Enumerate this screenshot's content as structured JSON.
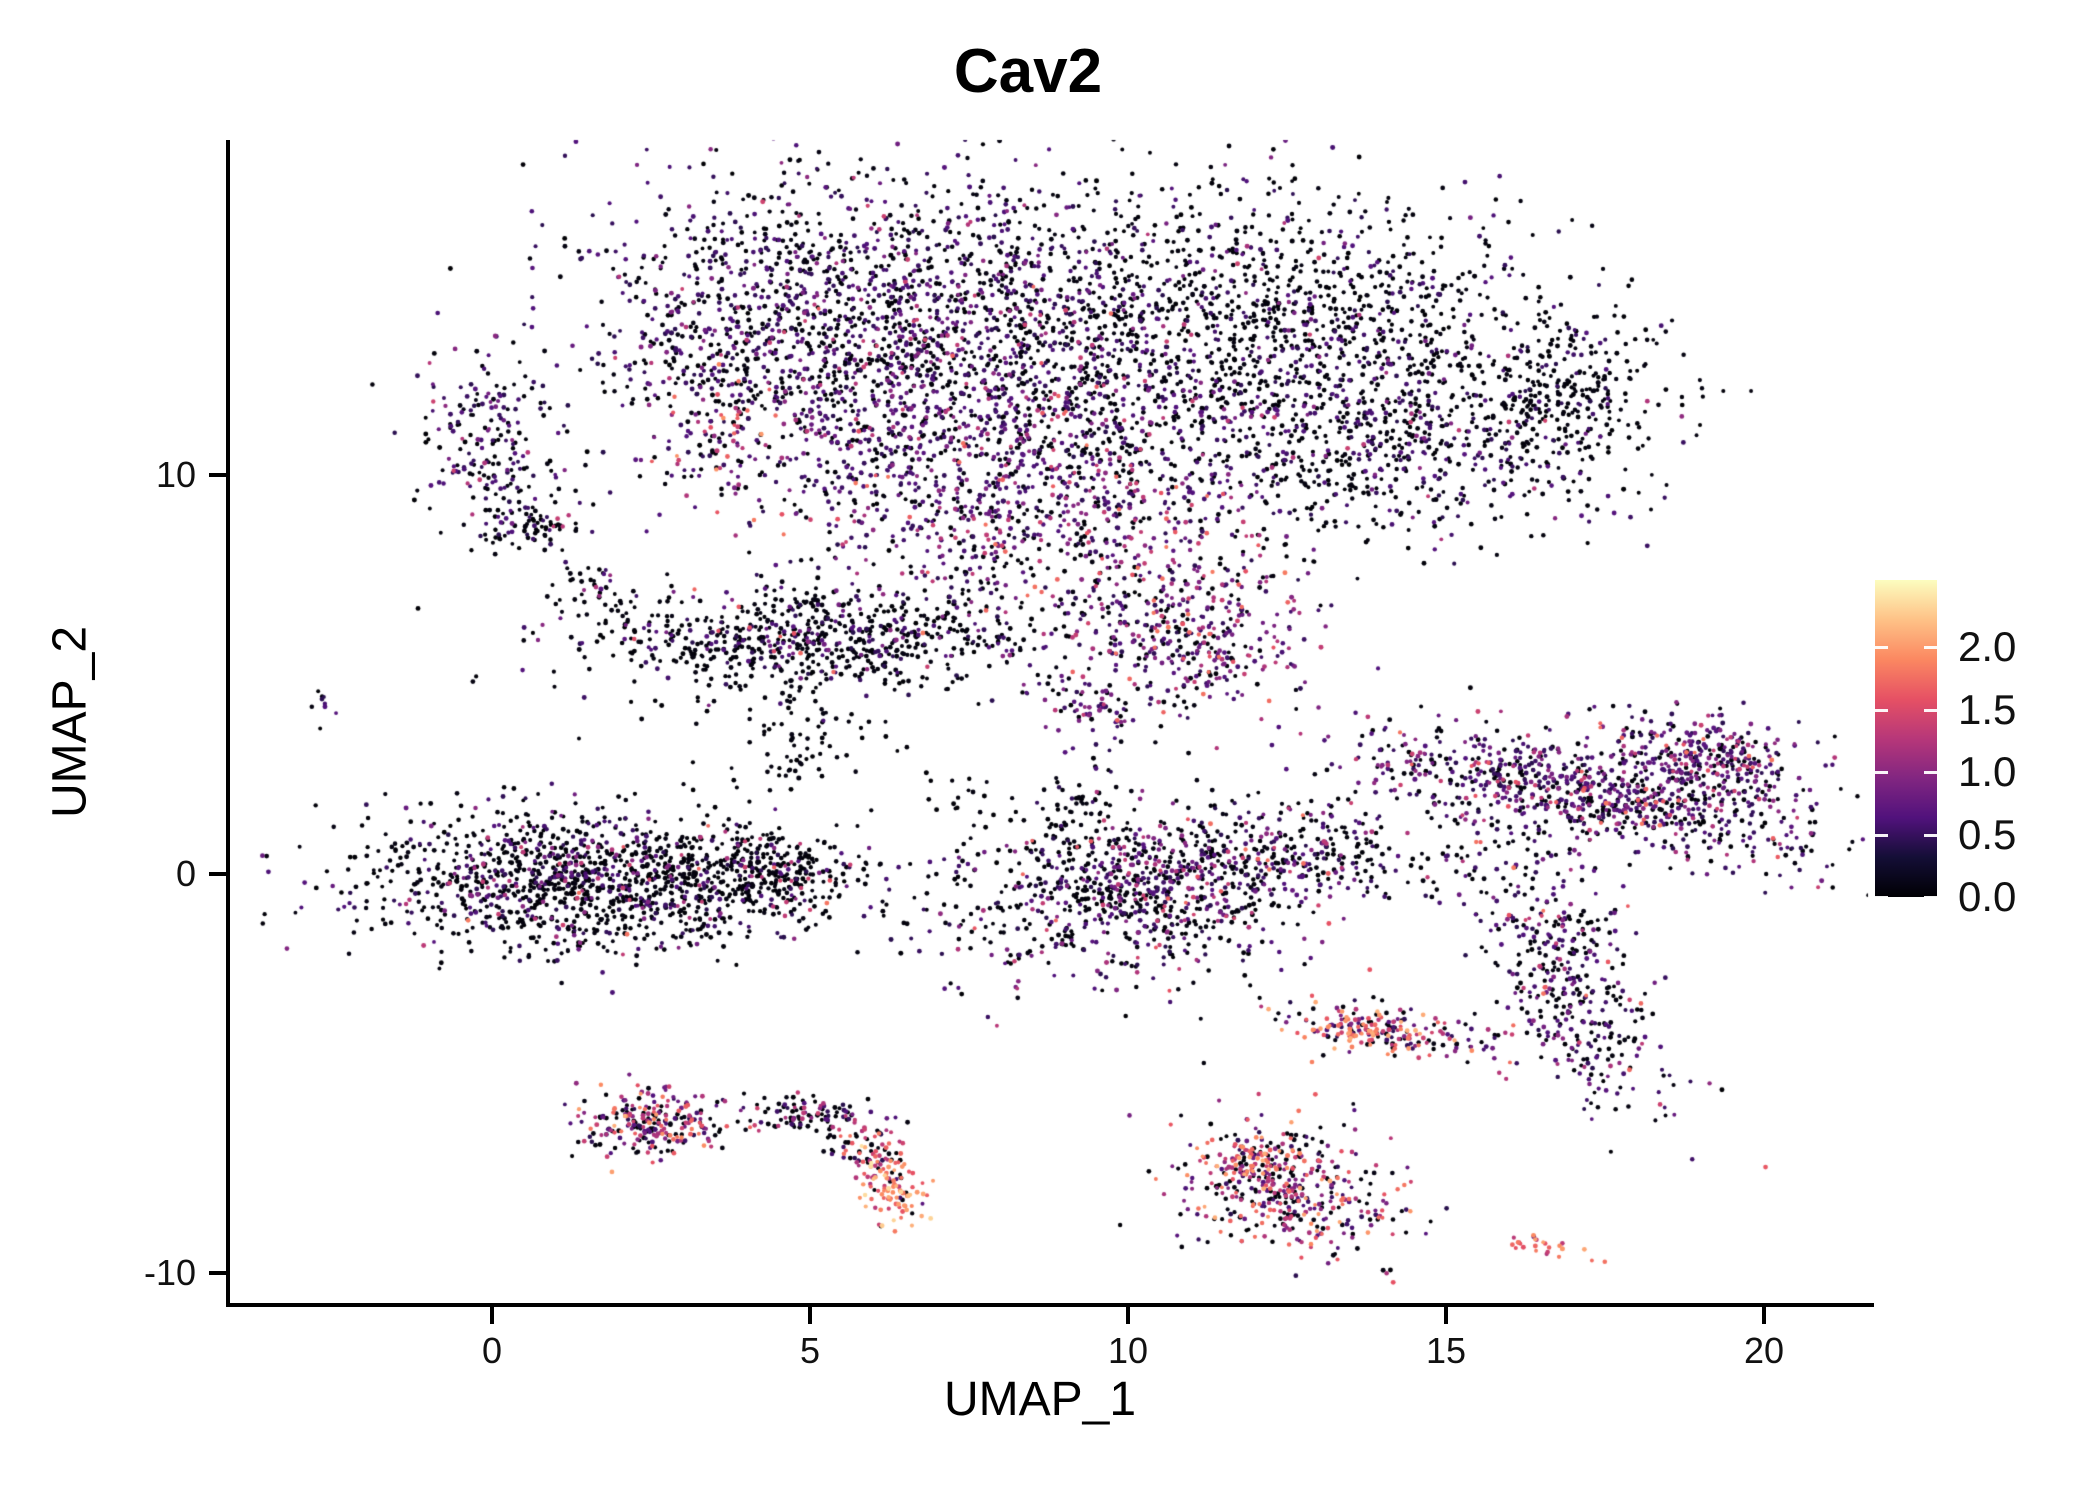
{
  "figure": {
    "title": "Cav2"
  },
  "chart_data": {
    "type": "scatter",
    "title": "Cav2",
    "xlabel": "UMAP_1",
    "ylabel": "UMAP_2",
    "grid": false,
    "axes": {
      "x": {
        "range": [
          -4.2,
          21.9
        ],
        "ticks": [
          0,
          5,
          10,
          15,
          20
        ],
        "tick_labels": [
          "0",
          "5",
          "10",
          "15",
          "20"
        ]
      },
      "y": {
        "range": [
          -10.8,
          18.4
        ],
        "ticks": [
          10,
          0,
          -10
        ],
        "tick_labels": [
          "10",
          "0",
          "-10"
        ]
      }
    },
    "legend": {
      "position": "right",
      "vmin": 0.0,
      "vmax": 2.54,
      "ticks": [
        2.0,
        1.5,
        1.0,
        0.5,
        0.0
      ],
      "tick_labels": [
        "2.0",
        "1.5",
        "1.0",
        "0.5",
        "0.0"
      ]
    },
    "colormap": {
      "name": "magma",
      "stops": [
        [
          0.0,
          "#000004"
        ],
        [
          0.125,
          "#140e36"
        ],
        [
          0.25,
          "#51127c"
        ],
        [
          0.375,
          "#822681"
        ],
        [
          0.5,
          "#b73779"
        ],
        [
          0.625,
          "#e65164"
        ],
        [
          0.75,
          "#fb8861"
        ],
        [
          0.875,
          "#fec287"
        ],
        [
          1.0,
          "#fcfdbf"
        ]
      ]
    },
    "point_radius_px": [
      1.9,
      2.5
    ],
    "clusters_note": "UMAP cell clusters; each entry: [cx, cy, sx, sy, angle_deg, n_points, expression_mix[[value,weight]...]] in data coordinates; expression = Cav2 level (0 to ~2.5)",
    "clusters": [
      [
        -0.15,
        10.8,
        0.55,
        1.05,
        0,
        190,
        [
          [
            0,
            50
          ],
          [
            0.55,
            32
          ],
          [
            0.9,
            13
          ],
          [
            1.3,
            5
          ]
        ]
      ],
      [
        0.65,
        8.75,
        0.5,
        0.4,
        0,
        90,
        [
          [
            0,
            68
          ],
          [
            0.55,
            27
          ],
          [
            1.3,
            5
          ]
        ]
      ],
      [
        1.6,
        7.2,
        0.35,
        0.3,
        0,
        30,
        [
          [
            0,
            75
          ],
          [
            0.55,
            15
          ],
          [
            1.1,
            10
          ]
        ]
      ],
      [
        2.6,
        6.9,
        0.7,
        0.12,
        0,
        12,
        [
          [
            0,
            90
          ],
          [
            0.55,
            10
          ]
        ]
      ],
      [
        4.3,
        13.8,
        1.5,
        1.9,
        0,
        850,
        [
          [
            0,
            52
          ],
          [
            0.55,
            35
          ],
          [
            0.9,
            10
          ],
          [
            1.3,
            3
          ]
        ]
      ],
      [
        7.2,
        13.2,
        1.7,
        2.4,
        0,
        1150,
        [
          [
            0,
            50
          ],
          [
            0.55,
            36
          ],
          [
            0.9,
            10
          ],
          [
            1.3,
            4
          ]
        ]
      ],
      [
        8.1,
        10.2,
        1.9,
        2.1,
        0,
        1000,
        [
          [
            0,
            30
          ],
          [
            0.55,
            40
          ],
          [
            0.9,
            17
          ],
          [
            1.3,
            9
          ],
          [
            1.7,
            4
          ]
        ]
      ],
      [
        10.6,
        7.2,
        1.1,
        1.4,
        0,
        320,
        [
          [
            0,
            32
          ],
          [
            0.55,
            30
          ],
          [
            0.9,
            18
          ],
          [
            1.3,
            12
          ],
          [
            1.7,
            8
          ]
        ]
      ],
      [
        11.2,
        5.7,
        0.85,
        0.8,
        0,
        180,
        [
          [
            0,
            28
          ],
          [
            0.55,
            32
          ],
          [
            0.9,
            20
          ],
          [
            1.3,
            12
          ],
          [
            1.7,
            8
          ]
        ]
      ],
      [
        9.6,
        4.0,
        0.45,
        0.35,
        0,
        60,
        [
          [
            0,
            25
          ],
          [
            0.55,
            50
          ],
          [
            0.9,
            20
          ],
          [
            1.3,
            5
          ]
        ]
      ],
      [
        3.6,
        11.2,
        0.45,
        0.8,
        0,
        70,
        [
          [
            0,
            30
          ],
          [
            0.55,
            25
          ],
          [
            1.3,
            20
          ],
          [
            1.7,
            18
          ],
          [
            2.0,
            7
          ]
        ]
      ],
      [
        12.8,
        13.6,
        2.0,
        1.8,
        0,
        1050,
        [
          [
            0,
            72
          ],
          [
            0.55,
            22
          ],
          [
            0.9,
            5
          ],
          [
            1.3,
            1
          ]
        ]
      ],
      [
        14.1,
        10.6,
        1.8,
        1.1,
        0,
        550,
        [
          [
            0,
            66
          ],
          [
            0.55,
            26
          ],
          [
            0.9,
            6
          ],
          [
            1.3,
            2
          ]
        ]
      ],
      [
        16.9,
        12.0,
        0.75,
        0.9,
        0,
        260,
        [
          [
            0,
            90
          ],
          [
            0.55,
            9
          ],
          [
            1.3,
            1
          ]
        ]
      ],
      [
        10.0,
        13.7,
        1.4,
        2.1,
        0,
        320,
        [
          [
            0,
            80
          ],
          [
            0.55,
            17
          ],
          [
            0.9,
            3
          ]
        ]
      ],
      [
        -2.62,
        4.42,
        0.1,
        0.28,
        0,
        9,
        [
          [
            0,
            75
          ],
          [
            0.55,
            25
          ]
        ]
      ],
      [
        5.2,
        5.9,
        1.85,
        0.6,
        0,
        720,
        [
          [
            0,
            78
          ],
          [
            0.55,
            17
          ],
          [
            0.9,
            4
          ],
          [
            1.6,
            1
          ]
        ]
      ],
      [
        4.75,
        3.3,
        0.5,
        0.75,
        0,
        70,
        [
          [
            0,
            92
          ],
          [
            0.55,
            8
          ]
        ]
      ],
      [
        3.4,
        5.0,
        0.5,
        0.5,
        0,
        15,
        [
          [
            0,
            100
          ]
        ]
      ],
      [
        1.6,
        -0.15,
        1.8,
        0.85,
        0,
        1350,
        [
          [
            0,
            72
          ],
          [
            0.55,
            17
          ],
          [
            0.9,
            6
          ],
          [
            1.3,
            4
          ],
          [
            1.7,
            1
          ]
        ]
      ],
      [
        4.4,
        0.1,
        0.6,
        0.45,
        0,
        200,
        [
          [
            0,
            85
          ],
          [
            0.55,
            12
          ],
          [
            1.3,
            3
          ]
        ]
      ],
      [
        7.4,
        1.9,
        0.5,
        0.4,
        0,
        18,
        [
          [
            0,
            100
          ]
        ]
      ],
      [
        9.9,
        -0.6,
        1.4,
        1.0,
        0,
        780,
        [
          [
            0,
            52
          ],
          [
            0.55,
            26
          ],
          [
            0.9,
            12
          ],
          [
            1.3,
            7
          ],
          [
            1.7,
            3
          ]
        ]
      ],
      [
        9.2,
        1.7,
        0.35,
        0.7,
        0,
        55,
        [
          [
            0,
            75
          ],
          [
            0.55,
            20
          ],
          [
            1.3,
            5
          ]
        ]
      ],
      [
        12.6,
        0.5,
        1.4,
        0.65,
        0,
        380,
        [
          [
            0,
            60
          ],
          [
            0.55,
            25
          ],
          [
            0.9,
            9
          ],
          [
            1.3,
            4
          ],
          [
            1.7,
            2
          ]
        ]
      ],
      [
        17.2,
        2.0,
        2.0,
        0.6,
        -18,
        850,
        [
          [
            0,
            35
          ],
          [
            0.55,
            38
          ],
          [
            0.9,
            15
          ],
          [
            1.3,
            8
          ],
          [
            1.7,
            4
          ]
        ]
      ],
      [
        19.1,
        2.9,
        0.8,
        0.55,
        -18,
        320,
        [
          [
            0,
            30
          ],
          [
            0.55,
            38
          ],
          [
            0.9,
            18
          ],
          [
            1.3,
            10
          ],
          [
            1.7,
            4
          ]
        ]
      ],
      [
        16.9,
        -2.6,
        0.55,
        1.8,
        15,
        420,
        [
          [
            0,
            45
          ],
          [
            0.55,
            33
          ],
          [
            0.9,
            13
          ],
          [
            1.3,
            6
          ],
          [
            1.7,
            3
          ]
        ]
      ],
      [
        14.25,
        -3.95,
        0.95,
        0.3,
        -12,
        170,
        [
          [
            0,
            30
          ],
          [
            0.55,
            22
          ],
          [
            0.9,
            14
          ],
          [
            1.3,
            14
          ],
          [
            1.7,
            12
          ],
          [
            2.0,
            8
          ]
        ]
      ],
      [
        13.55,
        -3.9,
        0.3,
        0.22,
        0,
        60,
        [
          [
            1.7,
            35
          ],
          [
            2.0,
            30
          ],
          [
            1.3,
            15
          ],
          [
            0,
            10
          ],
          [
            0.55,
            10
          ]
        ]
      ],
      [
        12.55,
        -7.9,
        0.95,
        0.75,
        -30,
        420,
        [
          [
            0,
            34
          ],
          [
            0.55,
            16
          ],
          [
            0.9,
            14
          ],
          [
            1.3,
            16
          ],
          [
            1.7,
            13
          ],
          [
            2.0,
            7
          ]
        ]
      ],
      [
        11.9,
        -7.3,
        0.35,
        0.3,
        0,
        80,
        [
          [
            1.7,
            30
          ],
          [
            2.0,
            25
          ],
          [
            1.3,
            20
          ],
          [
            0.9,
            10
          ],
          [
            0,
            15
          ]
        ]
      ],
      [
        16.45,
        -9.3,
        0.35,
        0.12,
        -20,
        26,
        [
          [
            1.7,
            30
          ],
          [
            2.0,
            25
          ],
          [
            2.3,
            10
          ],
          [
            1.3,
            15
          ],
          [
            0,
            12
          ],
          [
            0.55,
            8
          ]
        ]
      ],
      [
        2.45,
        -6.25,
        0.55,
        0.42,
        0,
        240,
        [
          [
            0,
            30
          ],
          [
            0.55,
            20
          ],
          [
            0.9,
            16
          ],
          [
            1.3,
            18
          ],
          [
            1.7,
            12
          ],
          [
            2.0,
            4
          ]
        ]
      ],
      [
        4.0,
        -6.3,
        0.85,
        0.12,
        0,
        26,
        [
          [
            0,
            50
          ],
          [
            0.55,
            20
          ],
          [
            0.9,
            10
          ],
          [
            1.3,
            15
          ],
          [
            1.7,
            5
          ]
        ]
      ],
      [
        5.0,
        -6.0,
        0.55,
        0.22,
        -10,
        80,
        [
          [
            0,
            60
          ],
          [
            0.55,
            20
          ],
          [
            0.9,
            10
          ],
          [
            1.3,
            10
          ]
        ]
      ],
      [
        5.85,
        -6.8,
        0.35,
        0.3,
        -45,
        70,
        [
          [
            0,
            45
          ],
          [
            0.55,
            15
          ],
          [
            1.3,
            20
          ],
          [
            1.7,
            20
          ]
        ]
      ],
      [
        6.3,
        -7.9,
        0.25,
        0.5,
        10,
        110,
        [
          [
            2.0,
            30
          ],
          [
            1.7,
            25
          ],
          [
            2.3,
            18
          ],
          [
            1.3,
            12
          ],
          [
            0.55,
            5
          ],
          [
            0,
            10
          ]
        ]
      ],
      [
        4.6,
        4.2,
        1.6,
        0.9,
        0,
        22,
        [
          [
            0,
            90
          ],
          [
            0.55,
            10
          ]
        ]
      ]
    ]
  }
}
